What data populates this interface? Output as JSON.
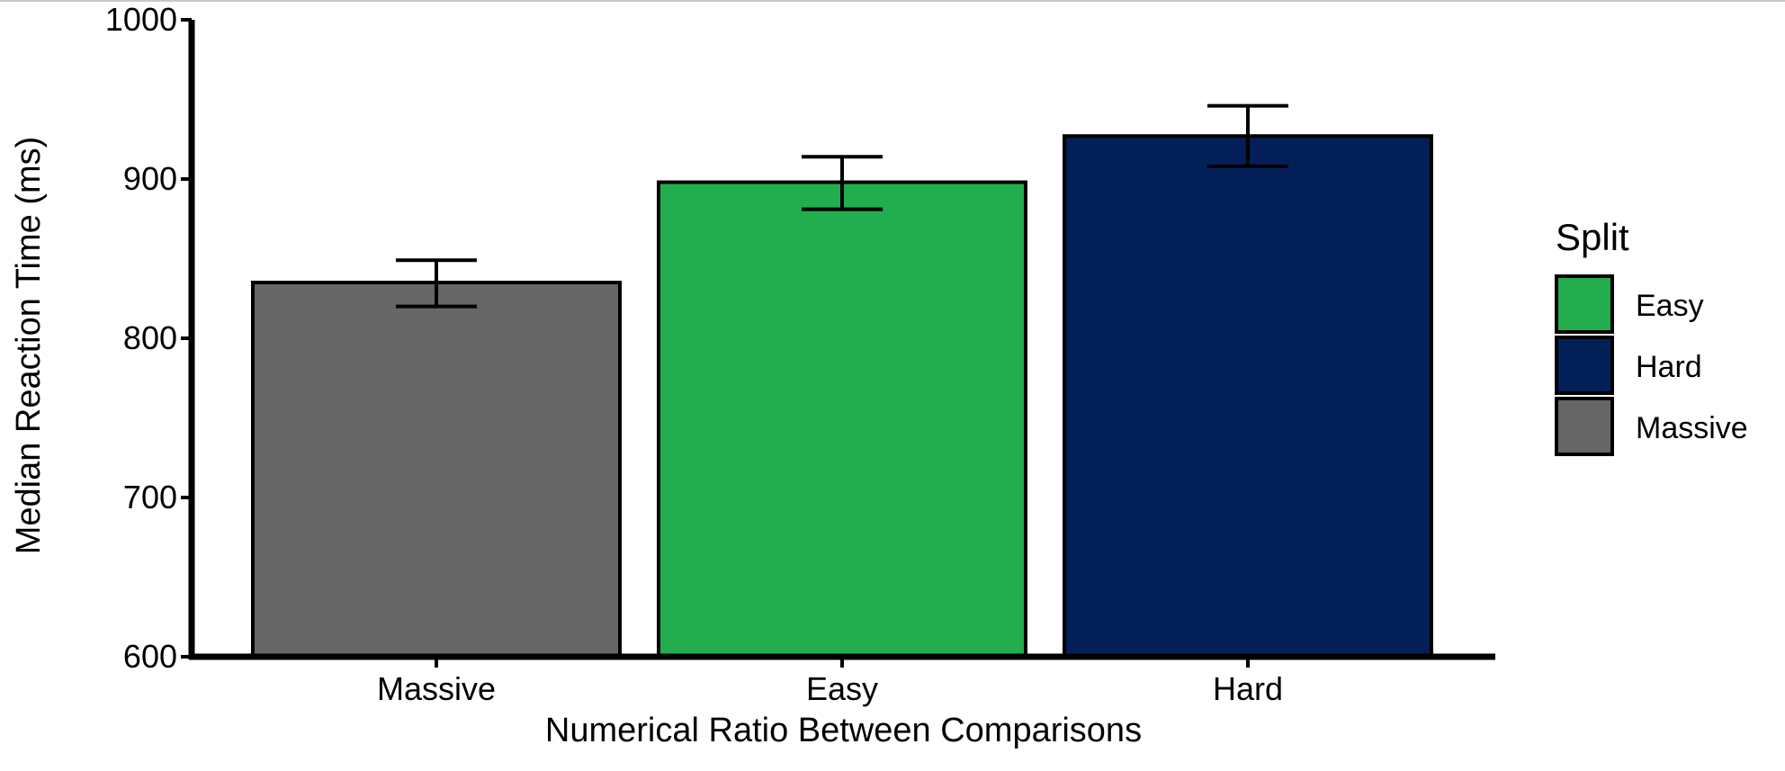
{
  "chart_data": {
    "type": "bar",
    "xlabel": "Numerical Ratio Between Comparisons",
    "ylabel": "Median Reaction Time (ms)",
    "ylim": [
      600,
      1000
    ],
    "yticks": [
      600,
      700,
      800,
      900,
      1000
    ],
    "categories": [
      "Massive",
      "Easy",
      "Hard"
    ],
    "values": [
      835,
      898,
      927
    ],
    "error_bars": [
      {
        "low": 820,
        "high": 849
      },
      {
        "low": 881,
        "high": 914
      },
      {
        "low": 908,
        "high": 946
      }
    ],
    "bar_colors": [
      "#666666",
      "#22ae4f",
      "#022057"
    ],
    "grid": false,
    "legend": {
      "title": "Split",
      "placement": "right",
      "items": [
        {
          "label": "Easy",
          "color": "#22ae4f"
        },
        {
          "label": "Hard",
          "color": "#022057"
        },
        {
          "label": "Massive",
          "color": "#666666"
        }
      ]
    }
  }
}
